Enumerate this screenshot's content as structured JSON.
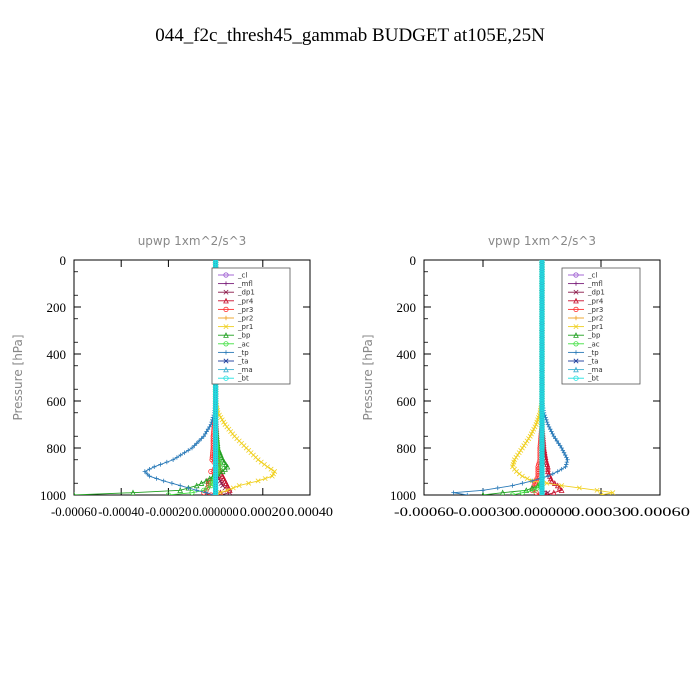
{
  "figure": {
    "title": "044_f2c_thresh45_gammab  BUDGET at105E,25N"
  },
  "colors": {
    "_cl": "#9b59d0",
    "_mfl": "#7a1f7a",
    "_dp1": "#8b1a4a",
    "_pr4": "#c8102e",
    "_pr3": "#ff3030",
    "_pr2": "#f0a020",
    "_pr1": "#f0d020",
    "_bp": "#20a020",
    "_ac": "#40e040",
    "_tp": "#2a7ab8",
    "_ta": "#1a3a9a",
    "_ma": "#40b0d0",
    "_bt": "#20e0e0"
  },
  "chart_data": [
    {
      "type": "line",
      "title": "upwp   1xm^2/s^3",
      "ylabel": "Pressure [hPa]",
      "xlabel": "",
      "xlim": [
        -0.0006,
        0.0004
      ],
      "ylim": [
        1000,
        0
      ],
      "x_ticks": [
        -0.0006,
        -0.0004,
        -0.0002,
        0.0,
        0.0002,
        0.0004
      ],
      "x_tick_labels": [
        "-0.00060",
        "-0.00040",
        "-0.00020",
        "0.000000",
        "0.00020",
        "0.00040"
      ],
      "y_ticks": [
        0,
        200,
        400,
        600,
        800,
        1000
      ],
      "y_tick_labels": [
        "0",
        "200",
        "400",
        "600",
        "800",
        "1000"
      ],
      "grid": false,
      "legend_position": "top-right",
      "y": [
        0,
        100,
        200,
        300,
        400,
        500,
        600,
        650,
        700,
        750,
        800,
        850,
        880,
        900,
        920,
        940,
        960,
        980,
        990,
        1000
      ],
      "series": [
        {
          "name": "_cl",
          "x": [
            0,
            0,
            0,
            0,
            0,
            0,
            0,
            0,
            0,
            0,
            0,
            0,
            0,
            0,
            0,
            0,
            0,
            0,
            0,
            0
          ]
        },
        {
          "name": "_mfl",
          "x": [
            0,
            0,
            0,
            0,
            0,
            0,
            0,
            0,
            0,
            0,
            0,
            0,
            0,
            0,
            0,
            0,
            0,
            0,
            0,
            0
          ]
        },
        {
          "name": "_dp1",
          "x": [
            0,
            0,
            0,
            0,
            0,
            0,
            0,
            0,
            0,
            0,
            0,
            0,
            0,
            5e-06,
            1e-05,
            2e-05,
            3e-05,
            5e-05,
            6e-05,
            2e-05
          ]
        },
        {
          "name": "_pr4",
          "x": [
            0,
            0,
            0,
            0,
            0,
            0,
            0,
            0,
            2e-06,
            5e-06,
            8e-06,
            1e-05,
            1.5e-05,
            2e-05,
            3e-05,
            4e-05,
            5e-05,
            6e-05,
            2e-05,
            0
          ]
        },
        {
          "name": "_pr3",
          "x": [
            0,
            0,
            0,
            0,
            0,
            0,
            0,
            0,
            -5e-06,
            -1e-05,
            -1e-05,
            -1.5e-05,
            1e-05,
            -2e-05,
            1e-05,
            -3e-05,
            -3e-05,
            -4e-05,
            -5e-05,
            -2e-05
          ]
        },
        {
          "name": "_pr2",
          "x": [
            0,
            0,
            0,
            0,
            0,
            0,
            0,
            0,
            0,
            0,
            0,
            0,
            0,
            0,
            0,
            0,
            0,
            0,
            0,
            0
          ]
        },
        {
          "name": "_pr1",
          "x": [
            0,
            0,
            0,
            0,
            0,
            0,
            0,
            1e-05,
            4e-05,
            8e-05,
            0.00013,
            0.00018,
            0.00022,
            0.00025,
            0.00024,
            0.00018,
            0.0001,
            5e-05,
            2e-05,
            0
          ]
        },
        {
          "name": "_bp",
          "x": [
            0,
            0,
            0,
            0,
            0,
            0,
            0,
            0,
            0,
            5e-06,
            1e-05,
            3e-05,
            5e-05,
            3e-05,
            -1e-05,
            -4e-05,
            -8e-05,
            -0.00015,
            -0.00035,
            -0.0006
          ]
        },
        {
          "name": "_ac",
          "x": [
            0,
            0,
            0,
            0,
            0,
            0,
            0,
            0,
            0,
            0,
            5e-06,
            1e-05,
            2e-05,
            1e-05,
            0,
            -1e-05,
            -2e-05,
            -5e-05,
            -0.0001,
            -0.0002
          ]
        },
        {
          "name": "_tp",
          "x": [
            0,
            0,
            0,
            0,
            0,
            0,
            0,
            -5e-06,
            -2e-05,
            -5e-05,
            -0.0001,
            -0.00018,
            -0.00026,
            -0.0003,
            -0.00028,
            -0.00022,
            -0.00015,
            -8e-05,
            -4e-05,
            -1e-05
          ]
        },
        {
          "name": "_ta",
          "x": [
            0,
            0,
            0,
            0,
            0,
            0,
            0,
            0,
            0,
            0,
            0,
            0,
            0,
            0,
            0,
            0,
            0,
            0,
            0,
            0
          ]
        },
        {
          "name": "_ma",
          "x": [
            0,
            0,
            0,
            0,
            0,
            0,
            0,
            0,
            0,
            0,
            0,
            0,
            0,
            0,
            0,
            0,
            0,
            0,
            0,
            0
          ]
        },
        {
          "name": "_bt",
          "x": [
            0,
            0,
            0,
            0,
            0,
            0,
            0,
            0,
            0,
            0,
            0,
            0,
            0,
            0,
            0,
            0,
            0,
            0,
            0,
            0
          ]
        }
      ]
    },
    {
      "type": "line",
      "title": "vpwp   1xm^2/s^3",
      "ylabel": "Pressure [hPa]",
      "xlabel": "",
      "xlim": [
        -0.0006,
        0.0006
      ],
      "ylim": [
        1000,
        0
      ],
      "x_ticks": [
        -0.0006,
        -0.0003,
        0.0,
        0.0003,
        0.0006
      ],
      "x_tick_labels": [
        "-0.00060",
        "-0.00030",
        "0.000000",
        "0.00030",
        "0.00060"
      ],
      "y_ticks": [
        0,
        200,
        400,
        600,
        800,
        1000
      ],
      "y_tick_labels": [
        "0",
        "200",
        "400",
        "600",
        "800",
        "1000"
      ],
      "grid": false,
      "legend_position": "top-right",
      "y": [
        0,
        100,
        200,
        300,
        400,
        500,
        600,
        650,
        700,
        750,
        800,
        850,
        880,
        900,
        920,
        940,
        960,
        980,
        990,
        1000
      ],
      "series": [
        {
          "name": "_cl",
          "x": [
            0,
            0,
            0,
            0,
            0,
            0,
            0,
            0,
            0,
            0,
            0,
            0,
            0,
            0,
            0,
            0,
            0,
            0,
            0,
            0
          ]
        },
        {
          "name": "_mfl",
          "x": [
            0,
            0,
            0,
            0,
            0,
            0,
            0,
            0,
            0,
            0,
            0,
            0,
            0,
            0,
            0,
            0,
            0,
            0,
            0,
            0
          ]
        },
        {
          "name": "_dp1",
          "x": [
            0,
            0,
            0,
            0,
            0,
            0,
            0,
            0,
            0,
            0,
            0,
            0,
            0,
            0,
            0,
            0,
            0,
            0,
            3e-05,
            1e-05
          ]
        },
        {
          "name": "_pr4",
          "x": [
            0,
            0,
            0,
            0,
            0,
            0,
            0,
            0,
            0,
            5e-06,
            1e-05,
            2e-05,
            3e-05,
            3e-05,
            4e-05,
            5e-05,
            8e-05,
            0.0001,
            6e-05,
            2e-05
          ]
        },
        {
          "name": "_pr3",
          "x": [
            0,
            0,
            0,
            0,
            0,
            0,
            0,
            0,
            0,
            -5e-06,
            -1e-05,
            -1e-05,
            -2e-05,
            -2e-05,
            -2e-05,
            -3e-05,
            -4e-05,
            -5e-05,
            -3e-05,
            -1e-05
          ]
        },
        {
          "name": "_pr2",
          "x": [
            0,
            0,
            0,
            0,
            0,
            0,
            0,
            0,
            0,
            0,
            0,
            0,
            0,
            0,
            0,
            0,
            0,
            0,
            0,
            0
          ]
        },
        {
          "name": "_pr1",
          "x": [
            0,
            0,
            0,
            0,
            0,
            0,
            0,
            -1e-05,
            -3e-05,
            -6e-05,
            -0.0001,
            -0.00014,
            -0.00015,
            -0.00013,
            -0.0001,
            -5e-05,
            0.0001,
            0.00028,
            0.00036,
            0.0003
          ]
        },
        {
          "name": "_bp",
          "x": [
            0,
            0,
            0,
            0,
            0,
            0,
            0,
            0,
            0,
            0,
            0,
            0,
            0,
            0,
            0,
            0,
            -2e-05,
            -8e-05,
            -0.0002,
            -0.0003
          ]
        },
        {
          "name": "_ac",
          "x": [
            0,
            0,
            0,
            0,
            0,
            0,
            0,
            0,
            0,
            0,
            0,
            0,
            0,
            0,
            0,
            0,
            -1e-05,
            -4e-05,
            -0.0001,
            -0.00015
          ]
        },
        {
          "name": "_tp",
          "x": [
            0,
            0,
            0,
            0,
            0,
            0,
            0,
            1e-05,
            3e-05,
            6e-05,
            0.0001,
            0.00013,
            0.00012,
            8e-05,
            3e-05,
            -5e-05,
            -0.00015,
            -0.0003,
            -0.00045,
            -0.00038
          ]
        },
        {
          "name": "_ta",
          "x": [
            0,
            0,
            0,
            0,
            0,
            0,
            0,
            0,
            0,
            0,
            0,
            0,
            0,
            0,
            0,
            0,
            0,
            0,
            0,
            0
          ]
        },
        {
          "name": "_ma",
          "x": [
            0,
            0,
            0,
            0,
            0,
            0,
            0,
            0,
            0,
            0,
            0,
            0,
            0,
            0,
            0,
            0,
            0,
            0,
            0,
            0
          ]
        },
        {
          "name": "_bt",
          "x": [
            0,
            0,
            0,
            0,
            0,
            0,
            0,
            0,
            0,
            0,
            0,
            0,
            0,
            0,
            0,
            0,
            0,
            0,
            0,
            0
          ]
        }
      ]
    }
  ]
}
